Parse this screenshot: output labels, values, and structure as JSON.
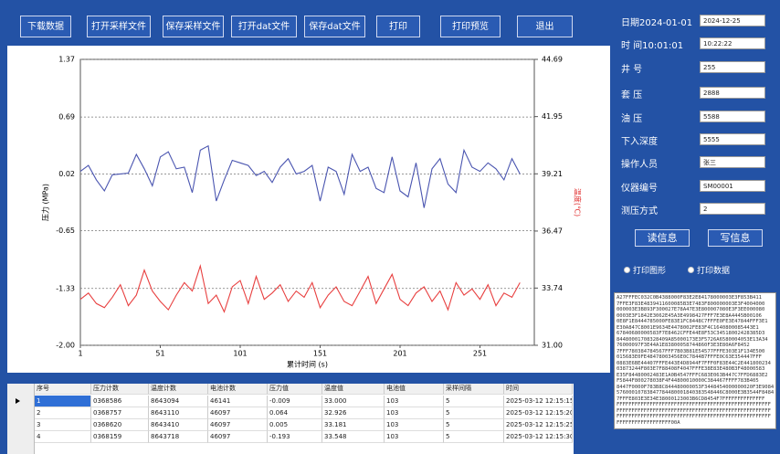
{
  "toolbar": {
    "buttons": [
      "下载数据",
      "打开采样文件",
      "保存采样文件",
      "打开dat文件",
      "保存dat文件",
      "打印",
      "打印预览",
      "退出"
    ]
  },
  "info": {
    "fields": [
      {
        "label": "日期2024-01-01",
        "value": "2024-12-25"
      },
      {
        "label": "时 间10:01:01",
        "value": "10:22:22"
      },
      {
        "label": "井 号",
        "value": "255"
      },
      {
        "label": "套 压",
        "value": "2888"
      },
      {
        "label": "油 压",
        "value": "5588"
      },
      {
        "label": "下入深度",
        "value": "5555"
      },
      {
        "label": "操作人员",
        "value": "张三"
      },
      {
        "label": "仪器编号",
        "value": "SM00001"
      },
      {
        "label": "测压方式",
        "value": "2"
      }
    ],
    "buttons": [
      "读信息",
      "写信息"
    ],
    "radios": [
      "打印图形",
      "打印数据"
    ]
  },
  "hex_dump": [
    "A27FFFEC032C0B4388000F83E2E84178000003E3F853B411",
    "7FFE3F83E4839411600085B3E7483F800000003E3F4004000",
    "000003E3B893F300027E78A47E3E800007080E3F3EE000080",
    "0003E3F1842E3062E45A3E4998427FFF7E3E8A4445B00106",
    "0E8F1E8444785000FE83E1FC8448C7FFFE0FE3E47844FFF3E1",
    "E30A847C8001E9634E4478002FE83F4C1640800085443E1",
    "67840680000583F7E8462CFFE44E8F53C34518002428385D3",
    "84480001708328409A85000173E3F5726A6580004053E13A34",
    "76000097F3E44A1E83800058744860F3E3E80A6F8452",
    "7FFF780384784567FFF7B03B81E54577FFFE303E1F134E500",
    "015683E0FE48478003456E0C7844B7FFFE0C63E354447FFF",
    "0883E6BE44407FFFE443E4D8944F7FFF0F83E44C2E441800234",
    "03873244F803E7F88408F4047FFFE38E83E480B3F48000583",
    "E35F84480002483E1A0B4547FFFC683E063B447C7FFD6883E2",
    "F5844F800278038F4F44800010000C384467FFFF783B405",
    "8447F0000F783B8C844480000053F3448454000000020F3E9084",
    "57600010783847784480001840383548446C8000E3B3544F8484",
    "7FFFE803E3E34E38000123003B6CD8454F7FFFFFFFFFFFFFF",
    "FFFFFFFFFFFFFFFFFFFFFFFFFFFFFFFFFFFFFFFFFFFFFFFFFFF",
    "FFFFFFFFFFFFFFFFFFFFFFFFFFFFFFFFFFFFFFFFFFFFFFFFFFF",
    "FFFFFFFFFFFFFFFFFFFFFFFFFFFFFFFFFFFFFFFFFFFFFFFFFFF",
    "FFFFFFFFFFFFFFFFFF00A"
  ],
  "chart_data": {
    "type": "line",
    "xlabel": "累计时间 (s)",
    "ylabel": "压力 (MPa)",
    "y2label": "温度(℃)",
    "x": [
      1,
      6,
      11,
      16,
      21,
      26,
      31,
      36,
      41,
      46,
      51,
      56,
      61,
      66,
      71,
      76,
      81,
      86,
      91,
      96,
      101,
      106,
      111,
      116,
      121,
      126,
      131,
      136,
      141,
      146,
      151,
      156,
      161,
      166,
      171,
      176,
      181,
      186,
      191,
      196,
      201,
      206,
      211,
      216,
      221,
      226,
      231,
      236,
      241,
      246,
      251,
      256,
      261,
      266,
      271,
      276
    ],
    "xlim": [
      1,
      285
    ],
    "xticks": [
      1,
      51,
      101,
      151,
      201,
      251
    ],
    "ylim": [
      -2,
      1.37
    ],
    "yticks": [
      1.37,
      0.69,
      0.02,
      -0.65,
      -1.33,
      {
        "value": -2,
        "label": "-2.00"
      }
    ],
    "y2lim": [
      31,
      44.69
    ],
    "y2ticks": [
      44.69,
      41.95,
      39.21,
      36.47,
      33.74,
      {
        "value": 31,
        "label": "31.00"
      }
    ],
    "y2label_color": "#e03030",
    "grid": true,
    "series": [
      {
        "color": "#4a55b0",
        "values": [
          0.05,
          0.12,
          -0.05,
          -0.18,
          0.01,
          0.02,
          0.03,
          0.25,
          0.08,
          -0.12,
          0.22,
          0.28,
          0.08,
          0.1,
          -0.2,
          0.3,
          0.35,
          -0.3,
          -0.05,
          0.18,
          0.15,
          0.12,
          0.0,
          0.05,
          -0.08,
          0.1,
          0.2,
          0.02,
          0.05,
          0.12,
          -0.3,
          0.1,
          0.05,
          -0.22,
          0.25,
          0.05,
          0.1,
          -0.15,
          -0.2,
          0.22,
          -0.18,
          -0.25,
          0.15,
          -0.38,
          0.08,
          0.2,
          -0.1,
          -0.2,
          0.3,
          0.1,
          0.05,
          0.15,
          0.08,
          -0.05,
          0.2,
          0.02
        ]
      },
      {
        "color": "#e84040",
        "axis": "y2",
        "values": [
          33.2,
          33.5,
          33.0,
          32.8,
          33.3,
          33.9,
          32.9,
          33.4,
          34.6,
          33.6,
          33.1,
          32.7,
          33.4,
          34.0,
          33.6,
          34.8,
          33.0,
          33.4,
          32.6,
          33.8,
          34.1,
          33.0,
          34.3,
          33.2,
          33.5,
          33.9,
          33.1,
          33.6,
          33.3,
          34.0,
          32.8,
          33.4,
          33.8,
          33.1,
          32.9,
          33.6,
          34.3,
          33.0,
          33.7,
          34.4,
          33.2,
          32.9,
          33.5,
          33.8,
          33.1,
          33.6,
          32.7,
          34.0,
          33.4,
          33.7,
          33.2,
          33.9,
          32.9,
          33.5,
          33.3,
          34.0
        ]
      }
    ]
  },
  "table": {
    "columns": [
      "序号",
      "压力计数",
      "温度计数",
      "电池计数",
      "压力值",
      "温度值",
      "电池值",
      "采样间隔",
      "时间"
    ],
    "rows": [
      [
        "1",
        "0368586",
        "8643094",
        "46141",
        "-0.009",
        "33.000",
        "103",
        "5",
        "2025-03-12 12:15:15"
      ],
      [
        "2",
        "0368757",
        "8643110",
        "46097",
        "0.064",
        "32.926",
        "103",
        "5",
        "2025-03-12 12:15:20"
      ],
      [
        "3",
        "0368620",
        "8643410",
        "46097",
        "0.005",
        "33.181",
        "103",
        "5",
        "2025-03-12 12:15:25"
      ],
      [
        "4",
        "0368159",
        "8643718",
        "46097",
        "-0.193",
        "33.548",
        "103",
        "5",
        "2025-03-12 12:15:30"
      ]
    ]
  }
}
